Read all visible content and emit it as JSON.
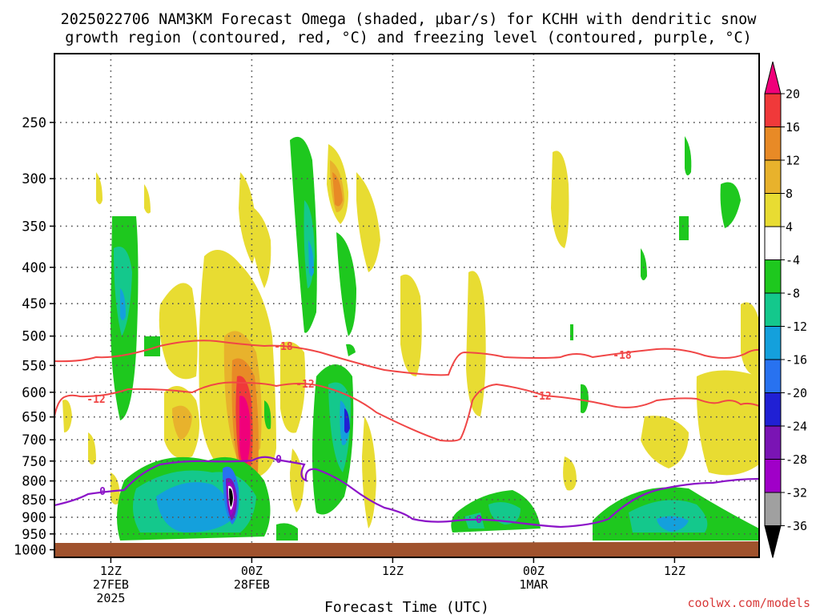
{
  "title_line1": "2025022706 NAM3KM Forecast Omega (shaded, µbar/s) for KCHH with dendritic snow",
  "title_line2": "growth region (contoured, red, °C) and freezing level (contoured, purple, °C)",
  "watermark": "coolwx.com/models",
  "chart_data": {
    "type": "heatmap",
    "title": "2025022706 NAM3KM Forecast Omega (shaded, µbar/s) for KCHH with dendritic snow growth region (contoured, red, °C) and freezing level (contoured, purple, °C)",
    "xlabel": "Forecast Time (UTC)",
    "ylabel": "",
    "x_hours_range": [
      6,
      81
    ],
    "y_pressure_range": [
      1025,
      200
    ],
    "y_scale": "log-pressure",
    "grid": true,
    "y_ticks": [
      250,
      300,
      350,
      400,
      450,
      500,
      550,
      600,
      650,
      700,
      750,
      800,
      850,
      900,
      950,
      1000
    ],
    "x_ticks": [
      {
        "hour": 12,
        "l1": "12Z",
        "l2": "27FEB",
        "l3": "2025"
      },
      {
        "hour": 27,
        "l1": "00Z",
        "l2": "28FEB",
        "l3": ""
      },
      {
        "hour": 42,
        "l1": "12Z",
        "l2": "",
        "l3": ""
      },
      {
        "hour": 57,
        "l1": "00Z",
        "l2": "1MAR",
        "l3": ""
      },
      {
        "hour": 72,
        "l1": "12Z",
        "l2": "",
        "l3": ""
      }
    ],
    "colorbar": {
      "labels": [
        "20",
        "16",
        "12",
        "8",
        "4",
        "-4",
        "-8",
        "-12",
        "-16",
        "-20",
        "-24",
        "-28",
        "-32",
        "-36"
      ],
      "colors": [
        "#f0007a",
        "#f0393a",
        "#e88a26",
        "#e8b22c",
        "#e8dc32",
        "#ffffff",
        "#1ec81e",
        "#14c88c",
        "#14a0dc",
        "#2872f0",
        "#2020d4",
        "#7a14b4",
        "#a000c8",
        "#a0a0a0",
        "#000000"
      ]
    },
    "contours": {
      "red": {
        "color": "#f04646",
        "labels": [
          "-18",
          "-12"
        ]
      },
      "purple": {
        "color": "#8c14c8",
        "labels": [
          "0"
        ]
      }
    }
  }
}
